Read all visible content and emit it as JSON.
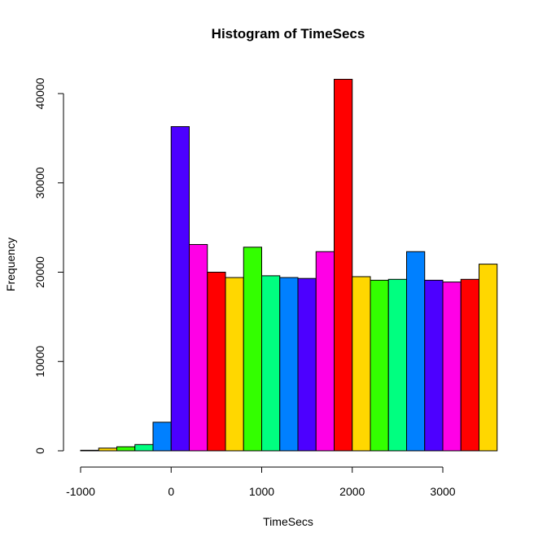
{
  "chart_data": {
    "type": "bar",
    "title": "Histogram of TimeSecs",
    "xlabel": "TimeSecs",
    "ylabel": "Frequency",
    "bin_width": 200,
    "bins": [
      {
        "x0": -1000,
        "x1": -800,
        "count": 60,
        "color": "#000000"
      },
      {
        "x0": -800,
        "x1": -600,
        "count": 300,
        "color": "#FFD700"
      },
      {
        "x0": -600,
        "x1": -400,
        "count": 450,
        "color": "#33FF00"
      },
      {
        "x0": -400,
        "x1": -200,
        "count": 700,
        "color": "#00FF80"
      },
      {
        "x0": -200,
        "x1": 0,
        "count": 3200,
        "color": "#0080FF"
      },
      {
        "x0": 0,
        "x1": 200,
        "count": 36300,
        "color": "#4C00FF"
      },
      {
        "x0": 200,
        "x1": 400,
        "count": 23100,
        "color": "#FF00E6"
      },
      {
        "x0": 400,
        "x1": 600,
        "count": 20000,
        "color": "#FF0000"
      },
      {
        "x0": 600,
        "x1": 800,
        "count": 19400,
        "color": "#FFD700"
      },
      {
        "x0": 800,
        "x1": 1000,
        "count": 22800,
        "color": "#33FF00"
      },
      {
        "x0": 1000,
        "x1": 1200,
        "count": 19600,
        "color": "#00FF80"
      },
      {
        "x0": 1200,
        "x1": 1400,
        "count": 19400,
        "color": "#0080FF"
      },
      {
        "x0": 1400,
        "x1": 1600,
        "count": 19300,
        "color": "#4C00FF"
      },
      {
        "x0": 1600,
        "x1": 1800,
        "count": 22300,
        "color": "#FF00E6"
      },
      {
        "x0": 1800,
        "x1": 2000,
        "count": 41600,
        "color": "#FF0000"
      },
      {
        "x0": 2000,
        "x1": 2200,
        "count": 19500,
        "color": "#FFD700"
      },
      {
        "x0": 2200,
        "x1": 2400,
        "count": 19100,
        "color": "#33FF00"
      },
      {
        "x0": 2400,
        "x1": 2600,
        "count": 19200,
        "color": "#00FF80"
      },
      {
        "x0": 2600,
        "x1": 2800,
        "count": 22300,
        "color": "#0080FF"
      },
      {
        "x0": 2800,
        "x1": 3000,
        "count": 19100,
        "color": "#4C00FF"
      },
      {
        "x0": 3000,
        "x1": 3200,
        "count": 18900,
        "color": "#FF00E6"
      },
      {
        "x0": 3200,
        "x1": 3400,
        "count": 19200,
        "color": "#FF0000"
      },
      {
        "x0": 3400,
        "x1": 3600,
        "count": 20900,
        "color": "#FFD700"
      }
    ],
    "xlim": [
      -1000,
      3600
    ],
    "ylim": [
      0,
      41600
    ],
    "x_ticks": [
      -1000,
      0,
      1000,
      2000,
      3000
    ],
    "x_tick_labels": [
      "-1000",
      "0",
      "1000",
      "2000",
      "3000"
    ],
    "y_ticks": [
      0,
      10000,
      20000,
      30000,
      40000
    ],
    "y_tick_labels": [
      "0",
      "10000",
      "20000",
      "30000",
      "40000"
    ],
    "grid": false,
    "legend": "none"
  }
}
